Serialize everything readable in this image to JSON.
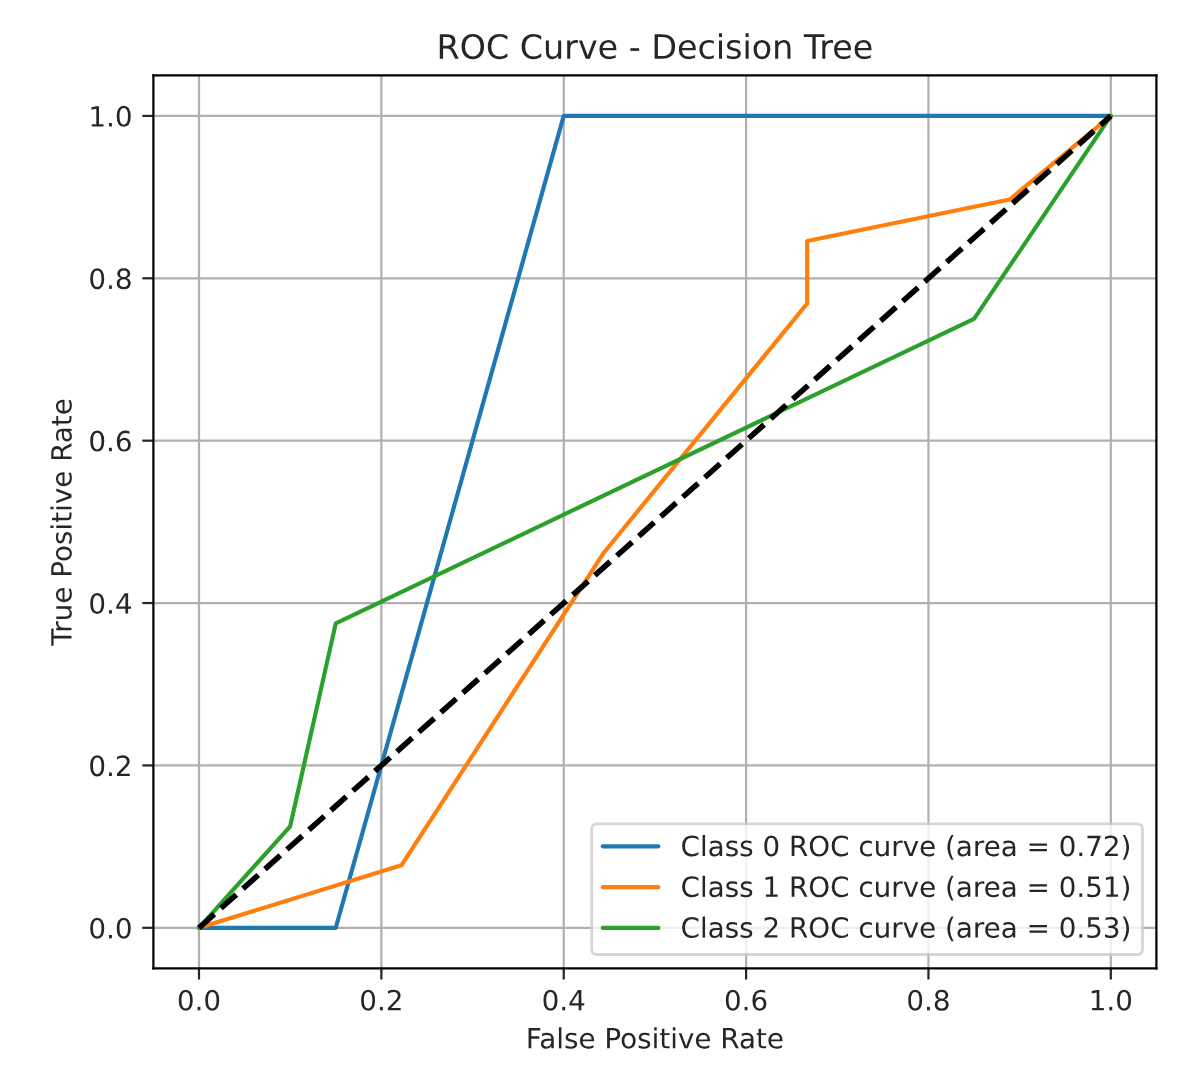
{
  "chart_data": {
    "type": "line",
    "title": "ROC Curve - Decision Tree",
    "xlabel": "False Positive Rate",
    "ylabel": "True Positive Rate",
    "xlim": [
      -0.05,
      1.05
    ],
    "ylim": [
      -0.05,
      1.05
    ],
    "xticks": [
      {
        "value": 0,
        "label": "0.0"
      },
      {
        "value": 0.2,
        "label": "0.2"
      },
      {
        "value": 0.4,
        "label": "0.4"
      },
      {
        "value": 0.6,
        "label": "0.6"
      },
      {
        "value": 0.8,
        "label": "0.8"
      },
      {
        "value": 1,
        "label": "1.0"
      }
    ],
    "yticks": [
      {
        "value": 0,
        "label": "0.0"
      },
      {
        "value": 0.2,
        "label": "0.2"
      },
      {
        "value": 0.4,
        "label": "0.4"
      },
      {
        "value": 0.6,
        "label": "0.6"
      },
      {
        "value": 0.8,
        "label": "0.8"
      },
      {
        "value": 1,
        "label": "1.0"
      }
    ],
    "grid": true,
    "legend": "bottom right",
    "series": [
      {
        "name": "Class 0 ROC curve (area = 0.72)",
        "color": "#1f77b4",
        "x": [
          0,
          0.15,
          0.4,
          1
        ],
        "values": [
          0,
          0,
          1,
          1
        ]
      },
      {
        "name": "Class 1 ROC curve (area = 0.51)",
        "color": "#ff7f0e",
        "x": [
          0,
          0.222,
          0.444,
          0.667,
          0.667,
          0.889,
          1
        ],
        "values": [
          0,
          0.077,
          0.462,
          0.769,
          0.846,
          0.897,
          1
        ]
      },
      {
        "name": "Class 2 ROC curve (area = 0.53)",
        "color": "#2ca02c",
        "x": [
          0,
          0.1,
          0.15,
          0.85,
          1
        ],
        "values": [
          0,
          0.125,
          0.375,
          0.75,
          1
        ]
      },
      {
        "color": "#000000",
        "x": [
          0,
          1
        ],
        "values": [
          0,
          1
        ],
        "line_style": "dashed"
      }
    ]
  }
}
